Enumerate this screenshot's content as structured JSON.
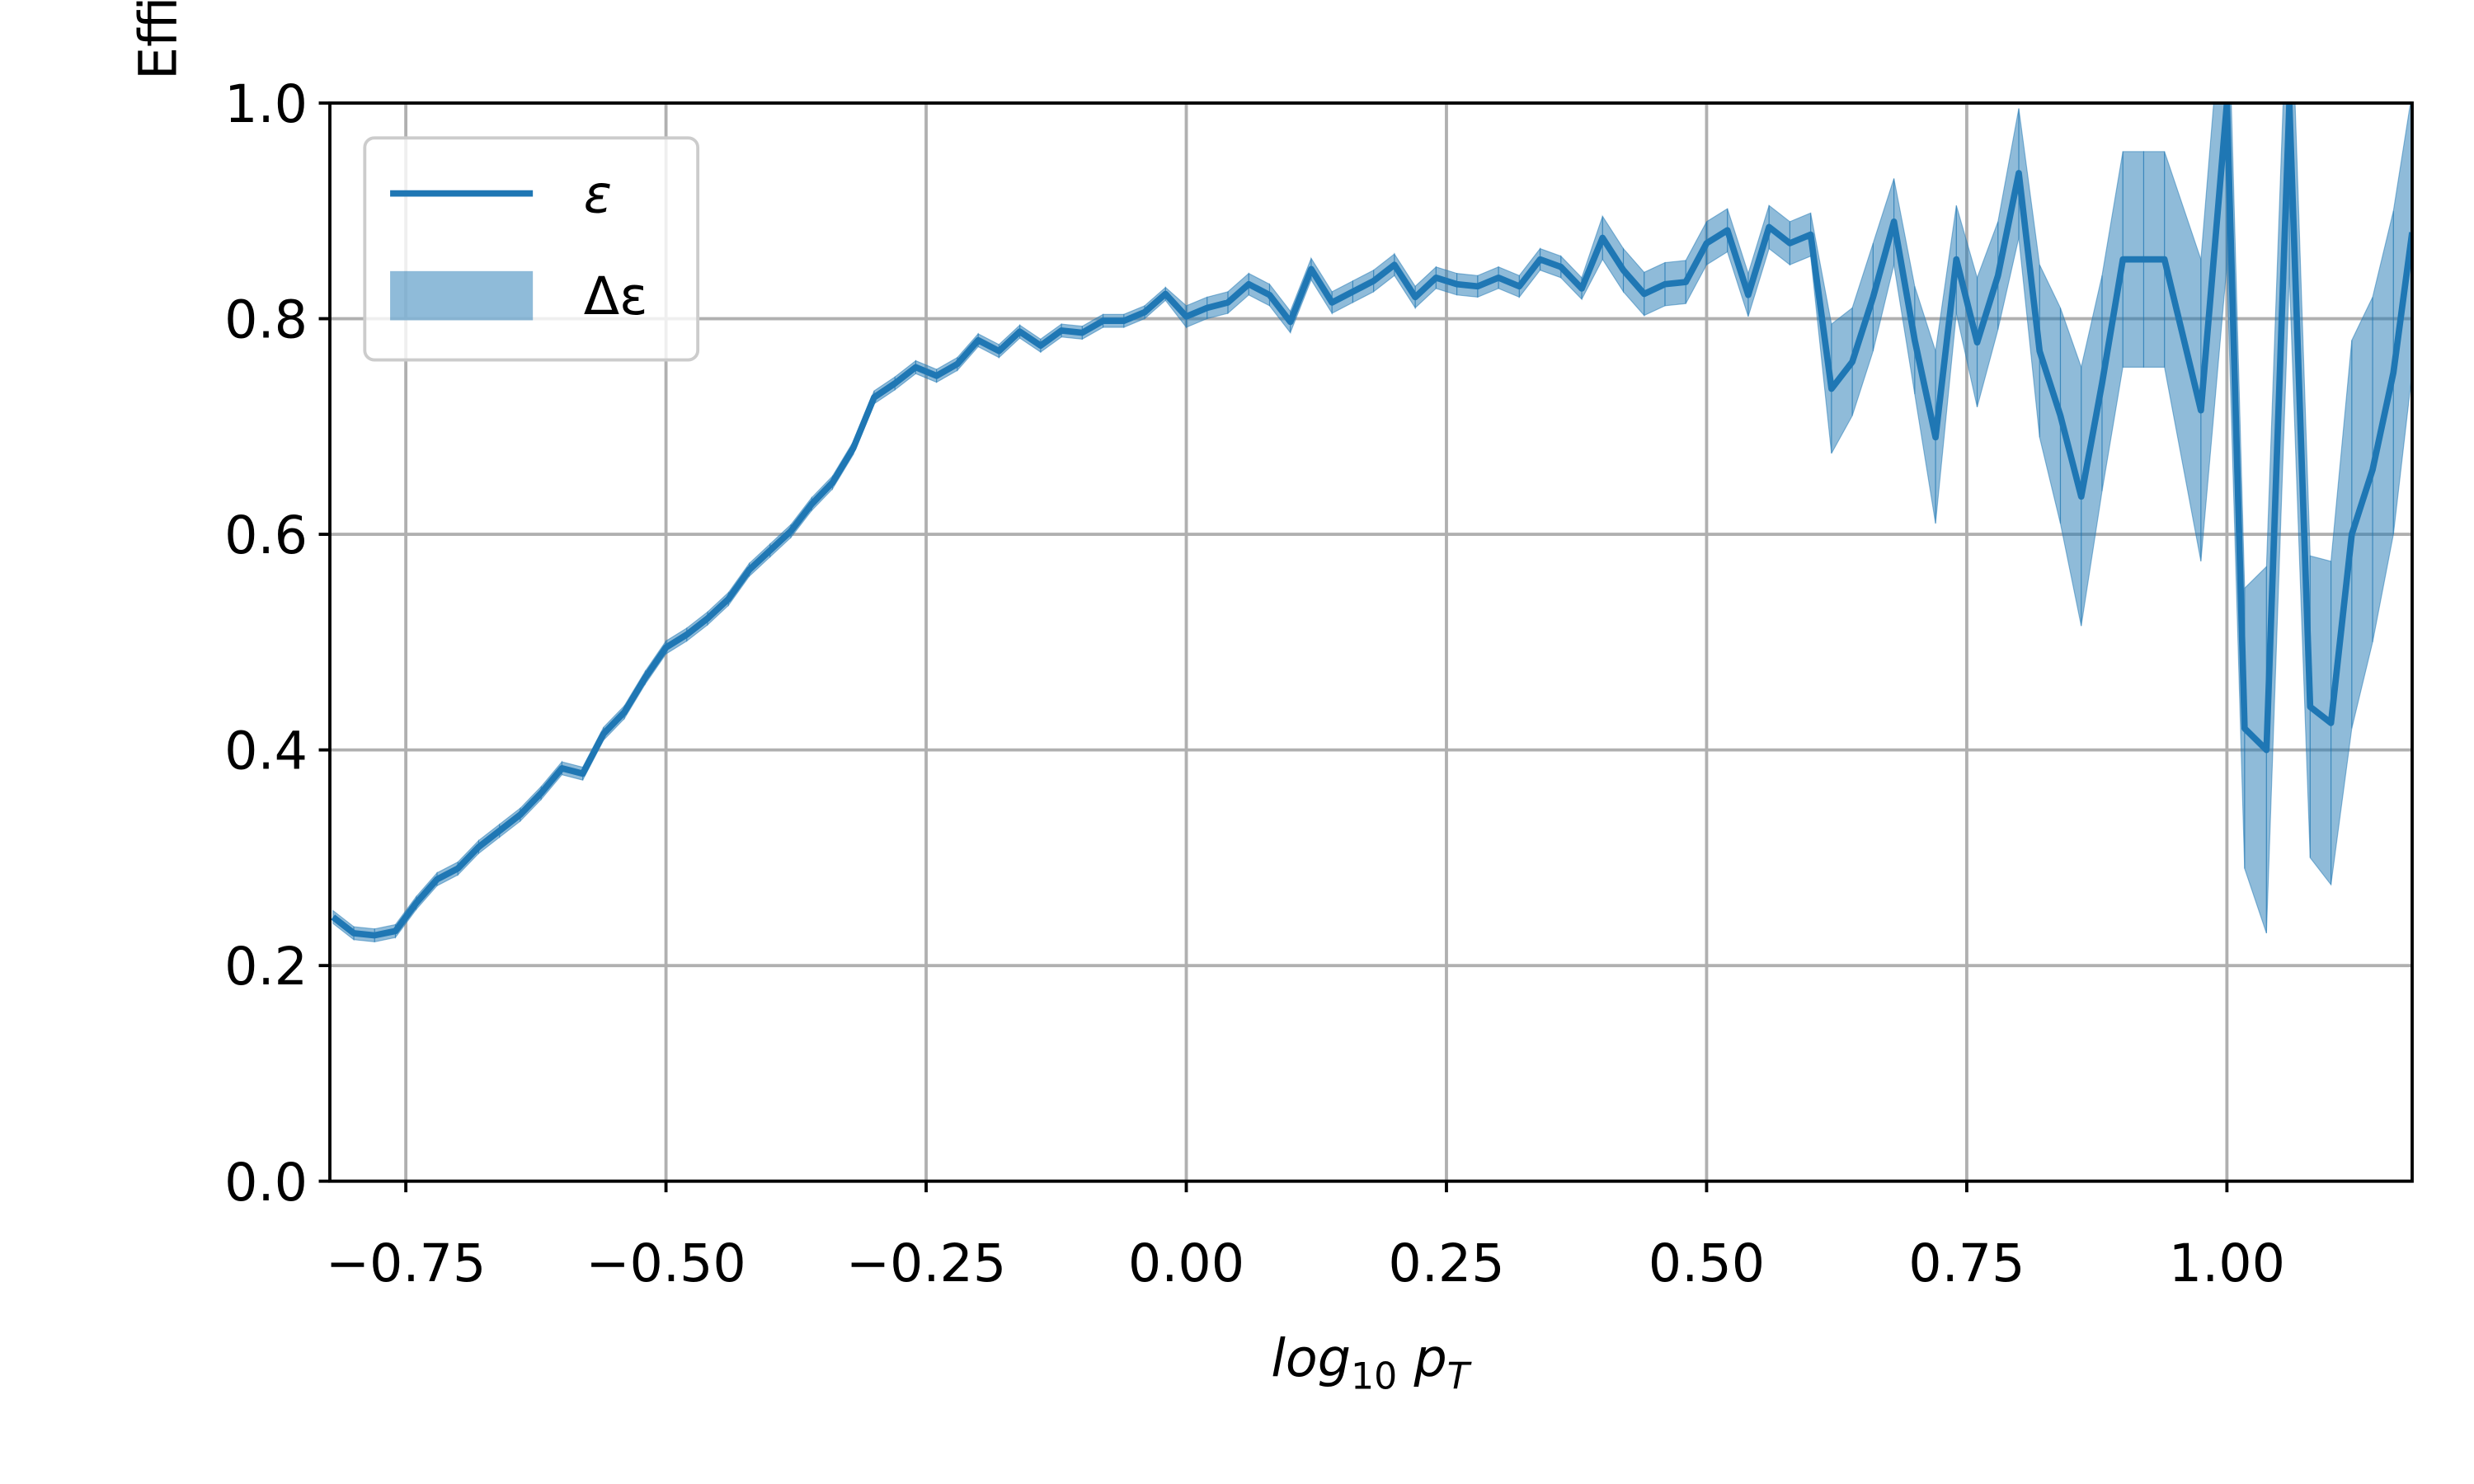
{
  "chart_data": {
    "type": "line",
    "xlabel": [
      "log",
      "10",
      " p",
      "T"
    ],
    "ylabel": "Efficiency",
    "x": [
      -0.82,
      -0.8,
      -0.78,
      -0.76,
      -0.74,
      -0.72,
      -0.7,
      -0.68,
      -0.66,
      -0.64,
      -0.62,
      -0.6,
      -0.58,
      -0.56,
      -0.54,
      -0.52,
      -0.5,
      -0.48,
      -0.46,
      -0.44,
      -0.42,
      -0.4,
      -0.38,
      -0.36,
      -0.34,
      -0.32,
      -0.3,
      -0.28,
      -0.26,
      -0.24,
      -0.22,
      -0.2,
      -0.18,
      -0.16,
      -0.14,
      -0.12,
      -0.1,
      -0.08,
      -0.06,
      -0.04,
      -0.02,
      0,
      0.02,
      0.04,
      0.06,
      0.08,
      0.1,
      0.12,
      0.14,
      0.16,
      0.18,
      0.2,
      0.22,
      0.24,
      0.26,
      0.28,
      0.3,
      0.32,
      0.34,
      0.36,
      0.38,
      0.4,
      0.42,
      0.44,
      0.46,
      0.48,
      0.5,
      0.52,
      0.54,
      0.56,
      0.58,
      0.6,
      0.62,
      0.64,
      0.66,
      0.68,
      0.7,
      0.72,
      0.74,
      0.76,
      0.78,
      0.8,
      0.82,
      0.84,
      0.86,
      0.88,
      0.9,
      0.92,
      0.94,
      0.975,
      1.0,
      1.017,
      1.038,
      1.06,
      1.08,
      1.1,
      1.12,
      1.14,
      1.16,
      1.178
    ],
    "series": [
      {
        "name": "ε",
        "error_label": "Δε",
        "color": "#1f77b4",
        "values": [
          0.245,
          0.23,
          0.228,
          0.232,
          0.258,
          0.28,
          0.29,
          0.31,
          0.325,
          0.34,
          0.36,
          0.383,
          0.378,
          0.415,
          0.435,
          0.467,
          0.495,
          0.507,
          0.522,
          0.54,
          0.567,
          0.585,
          0.603,
          0.628,
          0.648,
          0.68,
          0.727,
          0.74,
          0.755,
          0.747,
          0.758,
          0.78,
          0.77,
          0.788,
          0.775,
          0.789,
          0.787,
          0.798,
          0.798,
          0.806,
          0.823,
          0.802,
          0.81,
          0.815,
          0.832,
          0.822,
          0.797,
          0.846,
          0.815,
          0.825,
          0.835,
          0.85,
          0.82,
          0.838,
          0.832,
          0.83,
          0.838,
          0.83,
          0.855,
          0.848,
          0.828,
          0.875,
          0.845,
          0.823,
          0.832,
          0.834,
          0.87,
          0.882,
          0.822,
          0.885,
          0.87,
          0.878,
          0.735,
          0.76,
          0.82,
          0.89,
          0.78,
          0.69,
          0.855,
          0.778,
          0.84,
          0.935,
          0.77,
          0.71,
          0.635,
          0.74,
          0.855,
          0.855,
          0.855,
          0.715,
          1.0,
          0.42,
          0.4,
          1.0,
          0.44,
          0.425,
          0.6,
          0.66,
          0.75,
          0.88
        ],
        "errors": [
          0.006,
          0.006,
          0.006,
          0.006,
          0.006,
          0.006,
          0.006,
          0.006,
          0.006,
          0.006,
          0.006,
          0.006,
          0.006,
          0.006,
          0.006,
          0.006,
          0.006,
          0.006,
          0.006,
          0.006,
          0.006,
          0.006,
          0.006,
          0.006,
          0.006,
          0.006,
          0.006,
          0.006,
          0.006,
          0.006,
          0.006,
          0.006,
          0.006,
          0.006,
          0.006,
          0.006,
          0.006,
          0.006,
          0.006,
          0.006,
          0.006,
          0.01,
          0.01,
          0.01,
          0.01,
          0.01,
          0.01,
          0.01,
          0.01,
          0.01,
          0.01,
          0.01,
          0.01,
          0.01,
          0.01,
          0.01,
          0.01,
          0.01,
          0.01,
          0.01,
          0.01,
          0.02,
          0.02,
          0.02,
          0.02,
          0.02,
          0.02,
          0.02,
          0.02,
          0.02,
          0.02,
          0.02,
          0.06,
          0.05,
          0.05,
          0.04,
          0.05,
          0.08,
          0.05,
          0.06,
          0.05,
          0.06,
          0.08,
          0.1,
          0.12,
          0.1,
          0.1,
          0.1,
          0.1,
          0.14,
          0.15,
          0.13,
          0.17,
          0.16,
          0.14,
          0.15,
          0.18,
          0.16,
          0.15,
          0.13
        ]
      }
    ],
    "xlim": [
      -0.823,
      1.178
    ],
    "ylim": [
      0,
      1
    ],
    "xticks": [
      {
        "value": -0.75,
        "label": "−0.75"
      },
      {
        "value": -0.5,
        "label": "−0.50"
      },
      {
        "value": -0.25,
        "label": "−0.25"
      },
      {
        "value": 0,
        "label": "0.00"
      },
      0.25,
      {
        "value": 0.5,
        "label": "0.50"
      },
      0.75,
      {
        "value": 1,
        "label": "1.00"
      }
    ],
    "yticks": [
      {
        "value": 0,
        "label": "0.0"
      },
      0.2,
      0.4,
      0.6,
      0.8,
      {
        "value": 1,
        "label": "1.0"
      }
    ],
    "grid": true,
    "legend": "upper left"
  }
}
